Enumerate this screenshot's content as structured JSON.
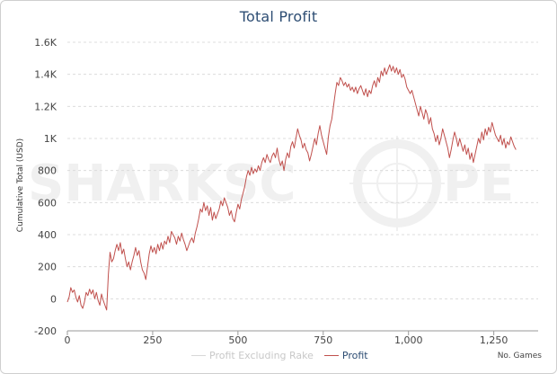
{
  "chart_data": {
    "type": "line",
    "title": "Total Profit",
    "ylabel": "Cumulative Total (USD)",
    "xlabel": "No. Games",
    "xlim": [
      0,
      1380
    ],
    "ylim": [
      -200,
      1600
    ],
    "yticks": [
      -200,
      0,
      200,
      400,
      600,
      800,
      1000,
      1200,
      1400,
      1600
    ],
    "ytick_labels": [
      "-200",
      "0",
      "200",
      "400",
      "600",
      "800",
      "1K",
      "1.2K",
      "1.4K",
      "1.6K"
    ],
    "xticks": [
      0,
      250,
      500,
      750,
      1000,
      1250
    ],
    "xtick_labels": [
      "0",
      "250",
      "500",
      "750",
      "1,000",
      "1,250"
    ],
    "grid": "horizontal-dashed",
    "legend_position": "bottom-center",
    "series": [
      {
        "name": "Profit Excluding Rake",
        "visible": false,
        "color": "#d8d8d8",
        "points": []
      },
      {
        "name": "Profit",
        "visible": true,
        "color": "#c0504d",
        "points": [
          [
            0,
            -20
          ],
          [
            5,
            10
          ],
          [
            10,
            70
          ],
          [
            15,
            40
          ],
          [
            20,
            55
          ],
          [
            25,
            10
          ],
          [
            30,
            -20
          ],
          [
            35,
            20
          ],
          [
            40,
            -40
          ],
          [
            45,
            -60
          ],
          [
            50,
            -20
          ],
          [
            55,
            40
          ],
          [
            60,
            20
          ],
          [
            65,
            60
          ],
          [
            70,
            30
          ],
          [
            75,
            55
          ],
          [
            80,
            0
          ],
          [
            85,
            40
          ],
          [
            90,
            -10
          ],
          [
            95,
            -40
          ],
          [
            100,
            30
          ],
          [
            105,
            -10
          ],
          [
            110,
            -40
          ],
          [
            115,
            -70
          ],
          [
            120,
            150
          ],
          [
            125,
            290
          ],
          [
            130,
            230
          ],
          [
            135,
            250
          ],
          [
            140,
            300
          ],
          [
            145,
            340
          ],
          [
            150,
            300
          ],
          [
            155,
            350
          ],
          [
            160,
            280
          ],
          [
            165,
            310
          ],
          [
            170,
            250
          ],
          [
            175,
            200
          ],
          [
            180,
            230
          ],
          [
            185,
            180
          ],
          [
            190,
            230
          ],
          [
            195,
            270
          ],
          [
            200,
            320
          ],
          [
            205,
            270
          ],
          [
            210,
            300
          ],
          [
            215,
            230
          ],
          [
            220,
            180
          ],
          [
            225,
            160
          ],
          [
            230,
            120
          ],
          [
            235,
            200
          ],
          [
            240,
            280
          ],
          [
            245,
            330
          ],
          [
            250,
            290
          ],
          [
            255,
            320
          ],
          [
            260,
            280
          ],
          [
            265,
            340
          ],
          [
            270,
            300
          ],
          [
            275,
            350
          ],
          [
            280,
            310
          ],
          [
            285,
            360
          ],
          [
            290,
            340
          ],
          [
            295,
            390
          ],
          [
            300,
            350
          ],
          [
            305,
            420
          ],
          [
            310,
            400
          ],
          [
            315,
            380
          ],
          [
            320,
            340
          ],
          [
            325,
            390
          ],
          [
            330,
            360
          ],
          [
            335,
            410
          ],
          [
            340,
            370
          ],
          [
            345,
            340
          ],
          [
            350,
            300
          ],
          [
            355,
            330
          ],
          [
            360,
            360
          ],
          [
            365,
            380
          ],
          [
            370,
            350
          ],
          [
            375,
            410
          ],
          [
            380,
            450
          ],
          [
            385,
            500
          ],
          [
            390,
            560
          ],
          [
            395,
            540
          ],
          [
            400,
            600
          ],
          [
            405,
            550
          ],
          [
            410,
            580
          ],
          [
            415,
            520
          ],
          [
            420,
            570
          ],
          [
            425,
            490
          ],
          [
            430,
            540
          ],
          [
            435,
            500
          ],
          [
            440,
            530
          ],
          [
            445,
            560
          ],
          [
            450,
            610
          ],
          [
            455,
            580
          ],
          [
            460,
            630
          ],
          [
            465,
            600
          ],
          [
            470,
            570
          ],
          [
            475,
            520
          ],
          [
            480,
            550
          ],
          [
            485,
            500
          ],
          [
            490,
            480
          ],
          [
            495,
            540
          ],
          [
            500,
            590
          ],
          [
            505,
            560
          ],
          [
            510,
            620
          ],
          [
            515,
            660
          ],
          [
            520,
            700
          ],
          [
            525,
            760
          ],
          [
            530,
            800
          ],
          [
            535,
            770
          ],
          [
            540,
            820
          ],
          [
            545,
            780
          ],
          [
            550,
            810
          ],
          [
            555,
            790
          ],
          [
            560,
            830
          ],
          [
            565,
            800
          ],
          [
            570,
            850
          ],
          [
            575,
            880
          ],
          [
            580,
            850
          ],
          [
            585,
            900
          ],
          [
            590,
            870
          ],
          [
            595,
            850
          ],
          [
            600,
            890
          ],
          [
            605,
            910
          ],
          [
            610,
            880
          ],
          [
            615,
            940
          ],
          [
            620,
            870
          ],
          [
            625,
            830
          ],
          [
            630,
            860
          ],
          [
            635,
            800
          ],
          [
            640,
            870
          ],
          [
            645,
            910
          ],
          [
            650,
            880
          ],
          [
            655,
            950
          ],
          [
            660,
            980
          ],
          [
            665,
            940
          ],
          [
            670,
            1000
          ],
          [
            675,
            1060
          ],
          [
            680,
            1020
          ],
          [
            685,
            990
          ],
          [
            690,
            940
          ],
          [
            695,
            970
          ],
          [
            700,
            930
          ],
          [
            705,
            910
          ],
          [
            710,
            860
          ],
          [
            715,
            900
          ],
          [
            720,
            950
          ],
          [
            725,
            1000
          ],
          [
            730,
            960
          ],
          [
            735,
            1030
          ],
          [
            740,
            1080
          ],
          [
            745,
            1020
          ],
          [
            750,
            980
          ],
          [
            755,
            940
          ],
          [
            760,
            900
          ],
          [
            765,
            1010
          ],
          [
            770,
            1080
          ],
          [
            775,
            1120
          ],
          [
            780,
            1200
          ],
          [
            785,
            1280
          ],
          [
            790,
            1350
          ],
          [
            795,
            1330
          ],
          [
            800,
            1380
          ],
          [
            805,
            1360
          ],
          [
            810,
            1330
          ],
          [
            815,
            1350
          ],
          [
            820,
            1320
          ],
          [
            825,
            1340
          ],
          [
            830,
            1300
          ],
          [
            835,
            1320
          ],
          [
            840,
            1290
          ],
          [
            845,
            1320
          ],
          [
            850,
            1280
          ],
          [
            855,
            1310
          ],
          [
            860,
            1330
          ],
          [
            865,
            1300
          ],
          [
            870,
            1270
          ],
          [
            875,
            1310
          ],
          [
            880,
            1260
          ],
          [
            885,
            1300
          ],
          [
            890,
            1280
          ],
          [
            895,
            1330
          ],
          [
            900,
            1360
          ],
          [
            905,
            1320
          ],
          [
            910,
            1380
          ],
          [
            915,
            1350
          ],
          [
            920,
            1420
          ],
          [
            925,
            1390
          ],
          [
            930,
            1440
          ],
          [
            935,
            1400
          ],
          [
            940,
            1430
          ],
          [
            945,
            1460
          ],
          [
            950,
            1420
          ],
          [
            955,
            1450
          ],
          [
            960,
            1410
          ],
          [
            965,
            1440
          ],
          [
            970,
            1400
          ],
          [
            975,
            1430
          ],
          [
            980,
            1380
          ],
          [
            985,
            1400
          ],
          [
            990,
            1370
          ],
          [
            995,
            1320
          ],
          [
            1000,
            1300
          ],
          [
            1005,
            1280
          ],
          [
            1010,
            1300
          ],
          [
            1015,
            1260
          ],
          [
            1020,
            1220
          ],
          [
            1025,
            1180
          ],
          [
            1030,
            1140
          ],
          [
            1035,
            1200
          ],
          [
            1040,
            1160
          ],
          [
            1045,
            1120
          ],
          [
            1050,
            1180
          ],
          [
            1055,
            1150
          ],
          [
            1060,
            1090
          ],
          [
            1065,
            1130
          ],
          [
            1070,
            1060
          ],
          [
            1075,
            1030
          ],
          [
            1080,
            980
          ],
          [
            1085,
            1020
          ],
          [
            1090,
            960
          ],
          [
            1095,
            1000
          ],
          [
            1100,
            1060
          ],
          [
            1105,
            1020
          ],
          [
            1110,
            980
          ],
          [
            1115,
            940
          ],
          [
            1120,
            880
          ],
          [
            1125,
            930
          ],
          [
            1130,
            990
          ],
          [
            1135,
            1040
          ],
          [
            1140,
            1000
          ],
          [
            1145,
            950
          ],
          [
            1150,
            1000
          ],
          [
            1155,
            960
          ],
          [
            1160,
            920
          ],
          [
            1165,
            960
          ],
          [
            1170,
            900
          ],
          [
            1175,
            940
          ],
          [
            1180,
            870
          ],
          [
            1185,
            910
          ],
          [
            1190,
            850
          ],
          [
            1195,
            900
          ],
          [
            1200,
            950
          ],
          [
            1205,
            1000
          ],
          [
            1210,
            970
          ],
          [
            1215,
            1040
          ],
          [
            1220,
            990
          ],
          [
            1225,
            1060
          ],
          [
            1230,
            1020
          ],
          [
            1235,
            1070
          ],
          [
            1240,
            1040
          ],
          [
            1245,
            1100
          ],
          [
            1250,
            1060
          ],
          [
            1255,
            1020
          ],
          [
            1260,
            1000
          ],
          [
            1265,
            980
          ],
          [
            1270,
            1020
          ],
          [
            1275,
            960
          ],
          [
            1280,
            1000
          ],
          [
            1285,
            940
          ],
          [
            1290,
            980
          ],
          [
            1295,
            960
          ],
          [
            1300,
            1010
          ],
          [
            1305,
            980
          ],
          [
            1310,
            950
          ],
          [
            1315,
            930
          ]
        ]
      }
    ]
  },
  "legend": {
    "items": [
      {
        "label": "Profit Excluding Rake",
        "active": false
      },
      {
        "label": "Profit",
        "active": true
      }
    ]
  },
  "watermark": {
    "text": "SHARKSCOPE"
  }
}
